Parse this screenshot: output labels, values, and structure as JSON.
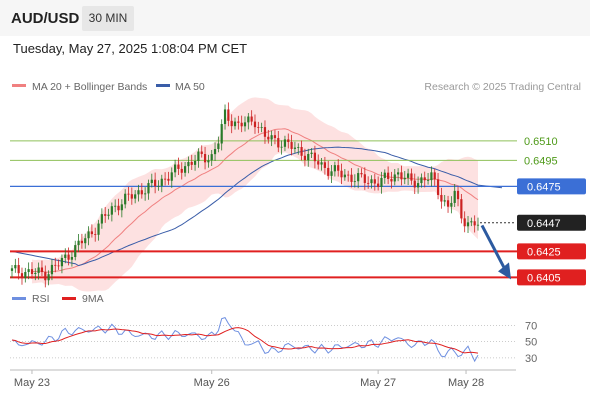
{
  "header": {
    "symbol": "AUD/USD",
    "timeframe": "30 MIN",
    "datetime": "Tuesday, May 27, 2025 1:08:04 PM CET"
  },
  "legend": {
    "ma20": "MA 20 + Bollinger Bands",
    "ma50": "MA 50",
    "credit": "Research © 2025 Trading Central"
  },
  "colors": {
    "bull": "#2a7a2a",
    "bear": "#cc2222",
    "ma20": "#f08080",
    "band": "#fddcdc",
    "ma50": "#3a5da8",
    "res": "#8fc15a",
    "pivot": "#3b6fd6",
    "sup": "#e02020",
    "rsi": "#6e8fe0",
    "rsiMa": "#e02020",
    "arrow": "#2c5aa0"
  },
  "chart_data": [
    {
      "type": "candlestick",
      "x_ticks": [
        "May 23",
        "May 26",
        "May 27",
        "May 28"
      ],
      "levels": [
        {
          "value": 0.651,
          "label": "0.6510",
          "kind": "resistance"
        },
        {
          "value": 0.6495,
          "label": "0.6495",
          "kind": "resistance"
        },
        {
          "value": 0.6475,
          "label": "0.6475",
          "kind": "pivot"
        },
        {
          "value": 0.6447,
          "label": "0.6447",
          "kind": "last"
        },
        {
          "value": 0.6425,
          "label": "0.6425",
          "kind": "support"
        },
        {
          "value": 0.6405,
          "label": "0.6405",
          "kind": "support"
        }
      ],
      "ylim": [
        0.6403,
        0.6543
      ],
      "forecast": {
        "from": 0.6445,
        "to": 0.6405,
        "direction": "down"
      }
    },
    {
      "type": "line",
      "title": "RSI",
      "series": [
        {
          "name": "RSI"
        },
        {
          "name": "9MA"
        }
      ],
      "y_ticks": [
        70,
        50,
        30
      ],
      "ylim": [
        20,
        84
      ]
    }
  ]
}
